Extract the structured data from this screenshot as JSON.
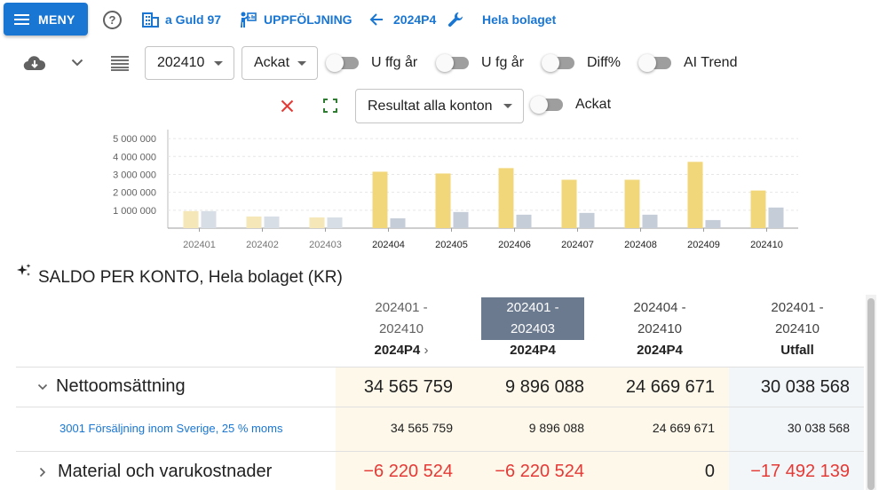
{
  "header": {
    "menu_label": "MENY",
    "help_glyph": "?",
    "company": "a Guld 97",
    "module": "UPPFÖLJNING",
    "period": "2024P4",
    "scope": "Hela bolaget"
  },
  "toolbar": {
    "period_select": "202410",
    "mode_select": "Ackat",
    "toggles": [
      {
        "label": "U ffg år",
        "on": false
      },
      {
        "label": "U fg år",
        "on": false
      },
      {
        "label": "Diff%",
        "on": false
      },
      {
        "label": "AI Trend",
        "on": false
      }
    ],
    "report_select": "Resultat alla konton",
    "ackat_toggle": {
      "label": "Ackat",
      "on": false
    }
  },
  "colors": {
    "accent": "#1976d2",
    "negative": "#e53935",
    "bar_actual": "#f2d77a",
    "bar_actual_faded": "#f6e7b8",
    "bar_compare": "#c5ced8",
    "bar_compare_faded": "#d8dee5",
    "clear_icon": "#e53935",
    "fullscreen_icon": "#2e7d32"
  },
  "chart_data": {
    "type": "bar",
    "categories": [
      "202401",
      "202402",
      "202403",
      "202404",
      "202405",
      "202406",
      "202407",
      "202408",
      "202409",
      "202410"
    ],
    "series": [
      {
        "values": [
          950000,
          650000,
          600000,
          3150000,
          3050000,
          3350000,
          2700000,
          2700000,
          3700000,
          2100000
        ]
      },
      {
        "values": [
          950000,
          650000,
          600000,
          550000,
          900000,
          750000,
          850000,
          750000,
          450000,
          1150000
        ]
      }
    ],
    "faded_categories": [
      "202401",
      "202402",
      "202403"
    ],
    "yticks": [
      "1 000 000",
      "2 000 000",
      "3 000 000",
      "4 000 000",
      "5 000 000"
    ],
    "ylim": [
      0,
      5500000
    ],
    "grid": true
  },
  "section": {
    "title": "SALDO PER KONTO, Hela bolaget (KR)"
  },
  "table": {
    "columns": [
      {
        "period_line1": "202401 -",
        "period_line2": "202410",
        "code": "2024P4",
        "chevron": "›"
      },
      {
        "period_line1": "202401 -",
        "period_line2": "202403",
        "code": "2024P4",
        "selected": true
      },
      {
        "period_line1": "202404 -",
        "period_line2": "202410",
        "code": "2024P4"
      },
      {
        "period_line1": "202401 -",
        "period_line2": "202410",
        "code": "Utfall"
      }
    ],
    "rows": [
      {
        "label": "Nettoomsättning",
        "expanded": true,
        "values": [
          "34 565 759",
          "9 896 088",
          "24 669 671",
          "30 038 568"
        ]
      },
      {
        "label": "3001 Försäljning inom Sverige, 25 % moms",
        "account": true,
        "values": [
          "34 565 759",
          "9 896 088",
          "24 669 671",
          "30 038 568"
        ]
      },
      {
        "label": "Material och varukostnader",
        "expanded": false,
        "values": [
          "−6 220 524",
          "−6 220 524",
          "0",
          "−17 492 139"
        ]
      }
    ]
  }
}
